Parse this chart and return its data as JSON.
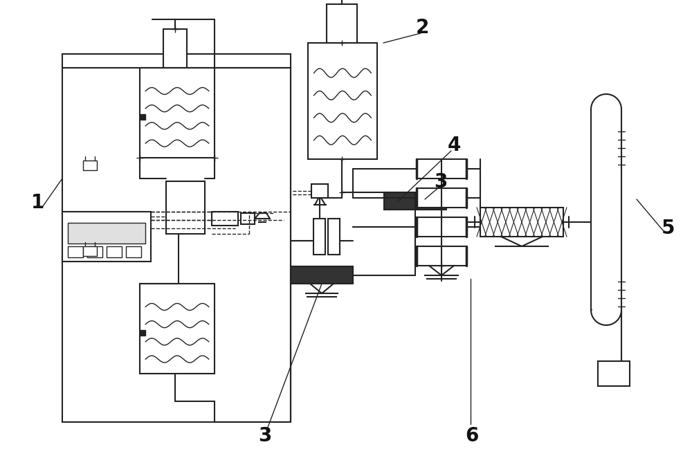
{
  "background_color": "#ffffff",
  "line_color": "#222222",
  "label_color": "#111111",
  "fig_width": 10.0,
  "fig_height": 6.88,
  "dpi": 100
}
